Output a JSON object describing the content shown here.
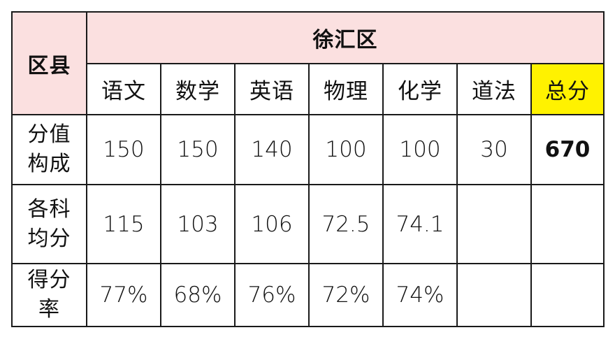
{
  "table": {
    "corner_header": "区县",
    "district": "徐汇区",
    "subjects": [
      "语文",
      "数学",
      "英语",
      "物理",
      "化学",
      "道法",
      "总分"
    ],
    "highlight_color": "#fff200",
    "header_color": "#fbe0e0",
    "rows": [
      {
        "label_line1": "分值",
        "label_line2": "构成",
        "cells": [
          "150",
          "150",
          "140",
          "100",
          "100",
          "30",
          "670"
        ]
      },
      {
        "label_line1": "各科",
        "label_line2": "均分",
        "cells": [
          "115",
          "103",
          "106",
          "72.5",
          "74.1",
          "",
          ""
        ]
      },
      {
        "label_line1": "得分",
        "label_line2": "率",
        "cells": [
          "77%",
          "68%",
          "76%",
          "72%",
          "74%",
          "",
          ""
        ]
      }
    ]
  }
}
